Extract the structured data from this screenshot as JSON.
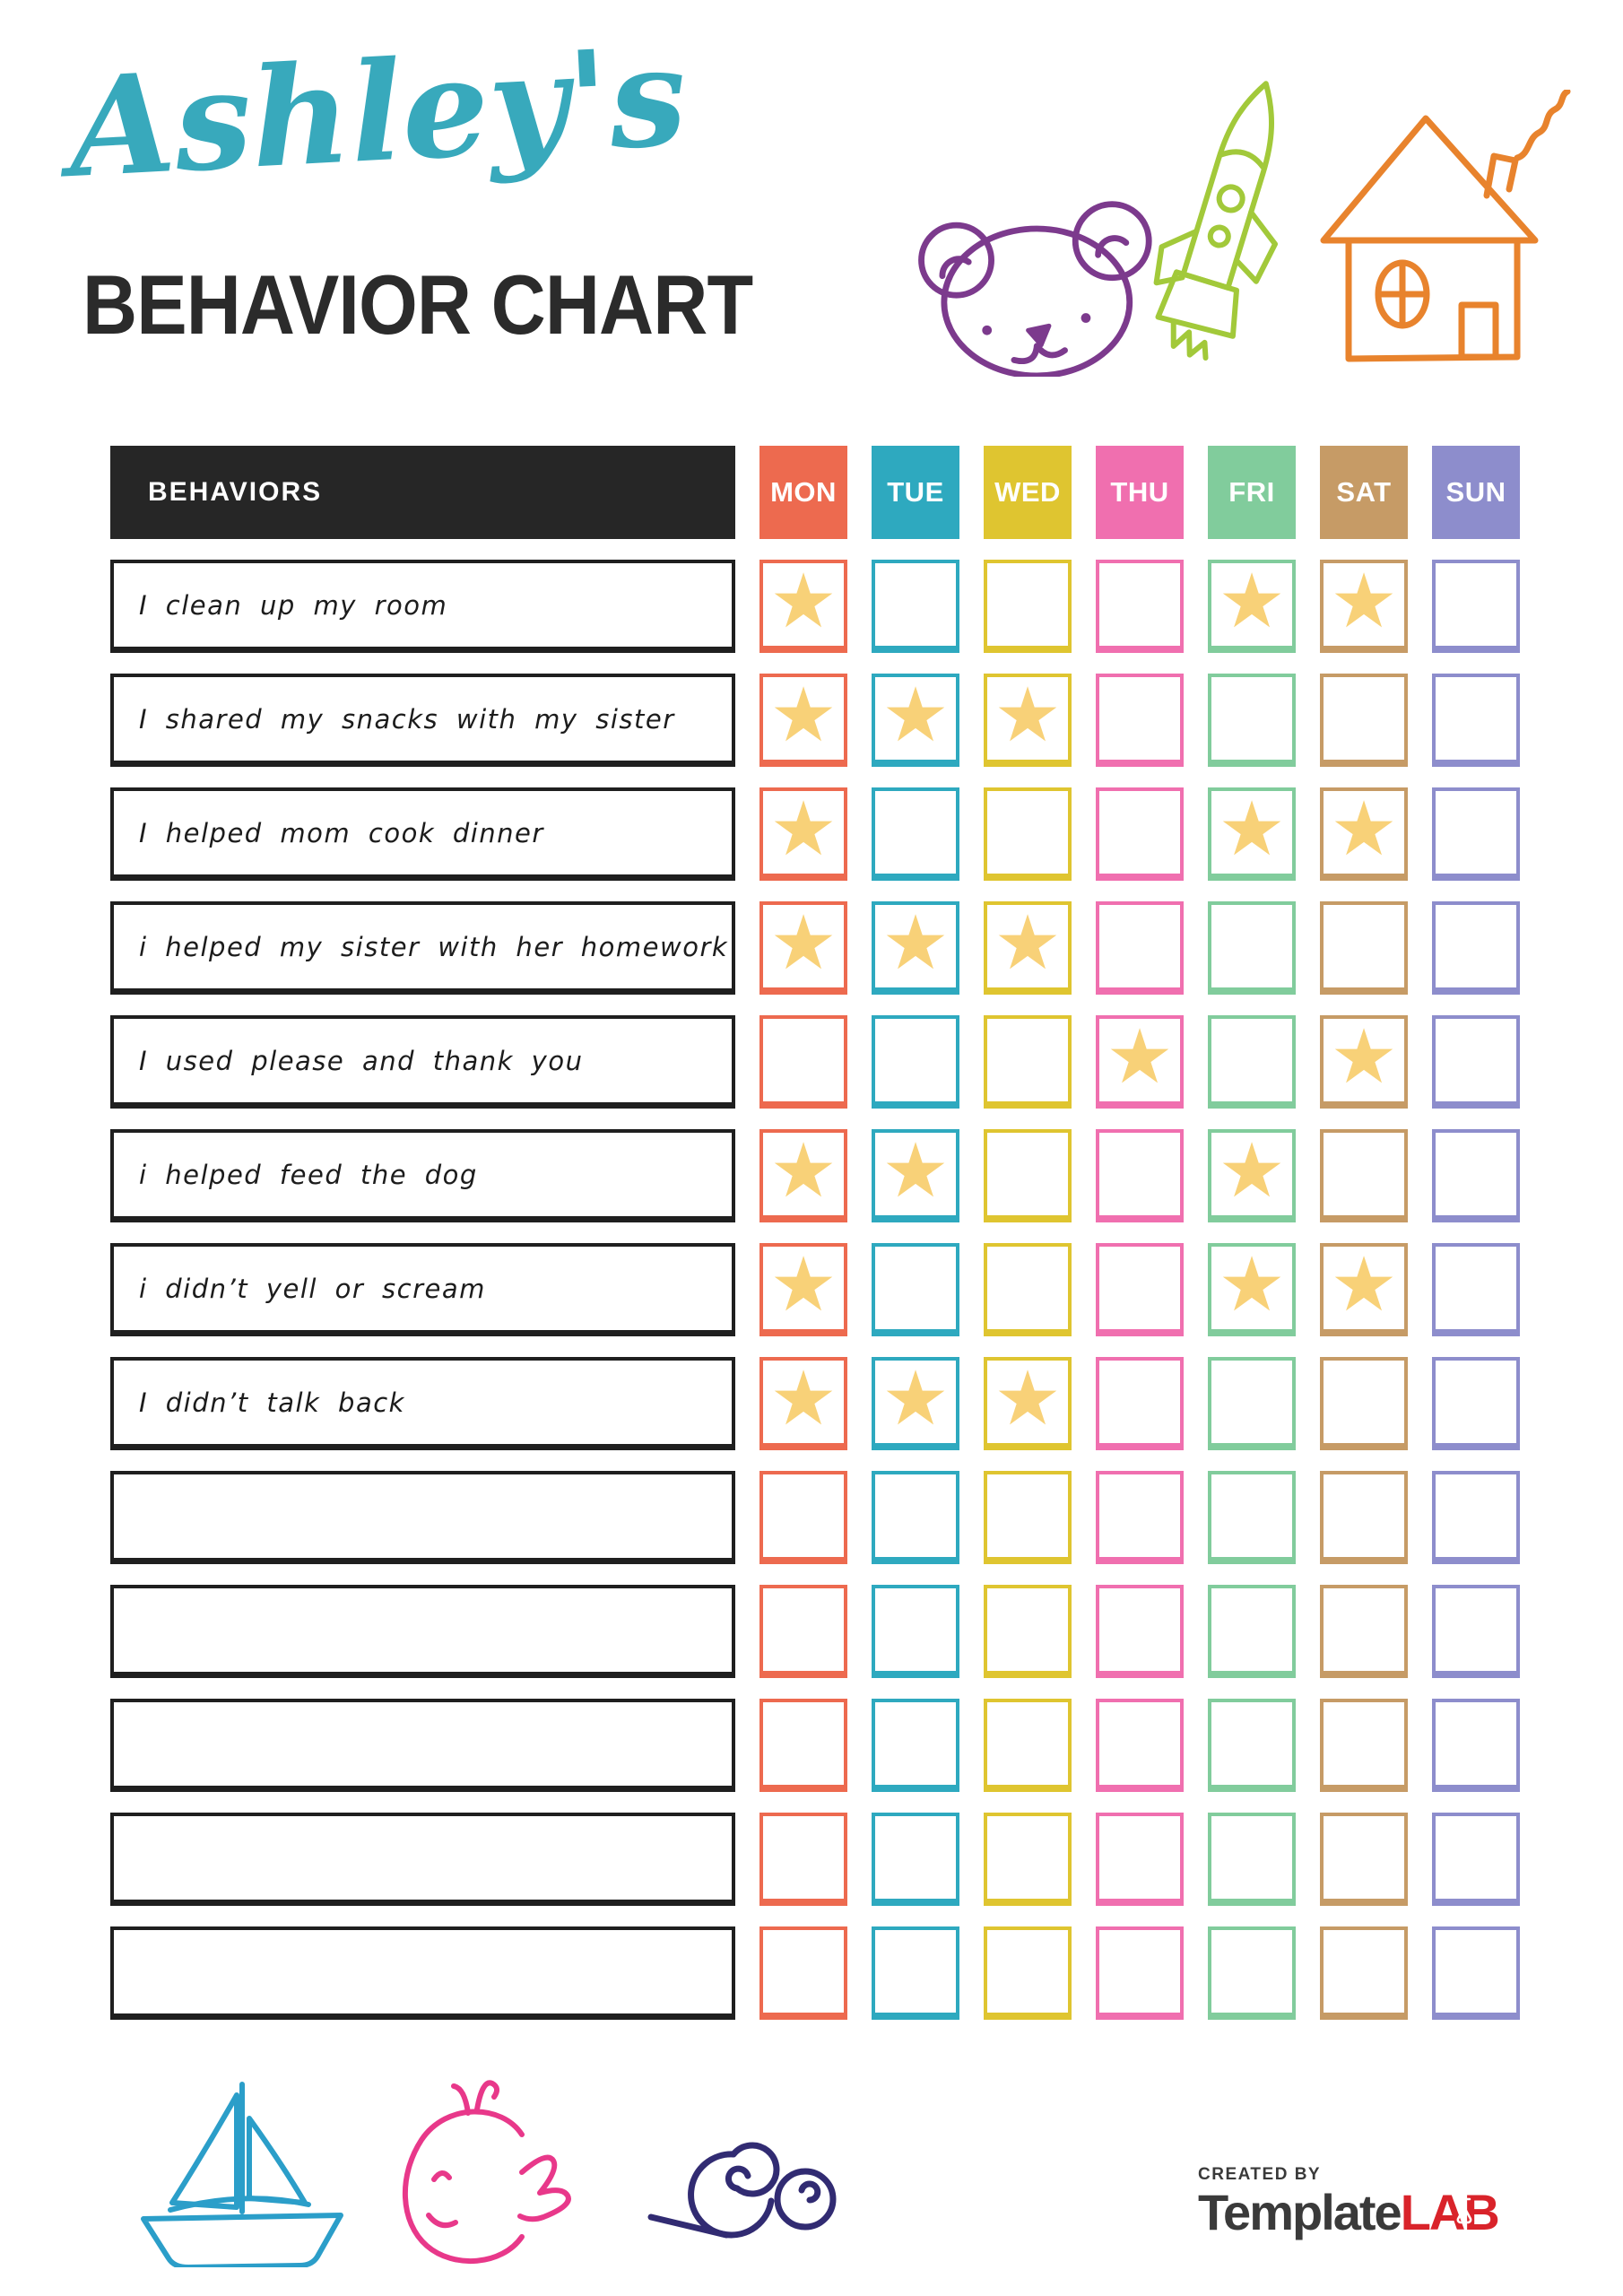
{
  "header": {
    "name_script": "Ashley's",
    "name_color": "#38A9BC",
    "title": "BEHAVIOR CHART",
    "title_color": "#2B2B2B",
    "doodles": [
      {
        "icon": "bear-icon",
        "color": "#7C3A8D"
      },
      {
        "icon": "rocket-icon",
        "color": "#A2C93A"
      },
      {
        "icon": "house-icon",
        "color": "#E8832D"
      }
    ]
  },
  "table": {
    "behaviors_header": "BEHAVIORS",
    "header_bg": "#262626",
    "days": [
      {
        "label": "MON",
        "color": "#ED6A4F"
      },
      {
        "label": "TUE",
        "color": "#2EA9BF"
      },
      {
        "label": "WED",
        "color": "#DFC530"
      },
      {
        "label": "THU",
        "color": "#F06FAF"
      },
      {
        "label": "FRI",
        "color": "#81CC9C"
      },
      {
        "label": "SAT",
        "color": "#C69B66"
      },
      {
        "label": "SUN",
        "color": "#8D8DCC"
      }
    ],
    "star_icon": "★",
    "star_color": "#F8D178",
    "rows": [
      {
        "label": "I clean up my room",
        "stars": [
          "MON",
          "FRI",
          "SAT"
        ]
      },
      {
        "label": "I shared my snacks with my sister",
        "stars": [
          "MON",
          "TUE",
          "WED"
        ]
      },
      {
        "label": "I helped mom cook dinner",
        "stars": [
          "MON",
          "FRI",
          "SAT"
        ]
      },
      {
        "label": "i helped my sister with her homework",
        "stars": [
          "MON",
          "TUE",
          "WED"
        ]
      },
      {
        "label": "I used please and thank you",
        "stars": [
          "THU",
          "SAT"
        ]
      },
      {
        "label": "i helped feed the dog",
        "stars": [
          "MON",
          "TUE",
          "FRI"
        ]
      },
      {
        "label": "i didn’t yell or scream",
        "stars": [
          "MON",
          "FRI",
          "SAT"
        ]
      },
      {
        "label": "I didn’t talk back",
        "stars": [
          "MON",
          "TUE",
          "WED"
        ]
      },
      {
        "label": "",
        "stars": []
      },
      {
        "label": "",
        "stars": []
      },
      {
        "label": "",
        "stars": []
      },
      {
        "label": "",
        "stars": []
      },
      {
        "label": "",
        "stars": []
      }
    ]
  },
  "footer": {
    "doodles": [
      {
        "icon": "sailboat-icon",
        "color": "#2B9EC9"
      },
      {
        "icon": "whale-icon",
        "color": "#E8388A"
      },
      {
        "icon": "snail-icon",
        "color": "#312B72"
      }
    ],
    "logo": {
      "created_by": "CREATED BY",
      "brand_first": "Template",
      "brand_second": "LAB",
      "created_color": "#3A3A3A",
      "brand_first_color": "#3A3A3A",
      "brand_second_color": "#D9232A"
    }
  }
}
